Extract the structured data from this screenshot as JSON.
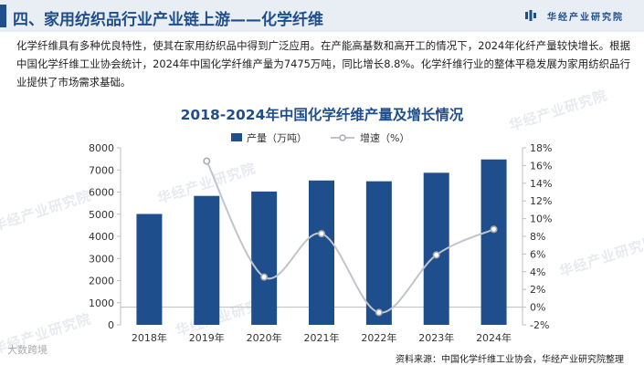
{
  "header": {
    "title": "四、家用纺织品行业产业链上游——化学纤维",
    "brand": "华经产业研究院"
  },
  "paragraph": "化学纤维具有多种优良特性，使其在家用纺织品中得到广泛应用。在产能高基数和高开工的情况下，2024年化纤产量较快增长。根据中国化学纤维工业协会统计，2024年中国化学纤维产量为7475万吨，同比增长8.8%。化学纤维行业的整体平稳发展为家用纺织品行业提供了市场需求基础。",
  "watermark_text": "华经产业研究院",
  "corner_logo": "大数跨境",
  "source": "资料来源：中国化学纤维工业协会，华经产业研究院整理",
  "colors": {
    "bar": "#1f4e8c",
    "line": "#c0c4cc",
    "title": "#1f4e8c"
  },
  "chart_data": {
    "type": "bar+line",
    "title": "2018-2024年中国化学纤维产量及增长情况",
    "categories": [
      "2018年",
      "2019年",
      "2020年",
      "2021年",
      "2022年",
      "2023年",
      "2024年"
    ],
    "series": [
      {
        "name": "产量（万吨）",
        "type": "bar",
        "axis": "left",
        "values": [
          5011,
          5827,
          6025,
          6524,
          6488,
          6872,
          7475
        ]
      },
      {
        "name": "增速（%）",
        "type": "line",
        "axis": "right",
        "values": [
          null,
          16.5,
          3.4,
          8.3,
          -0.6,
          5.9,
          8.8
        ]
      }
    ],
    "y_left": {
      "min": 0,
      "max": 8000,
      "ticks": [
        "0",
        "1000",
        "2000",
        "3000",
        "4000",
        "5000",
        "6000",
        "7000",
        "8000"
      ]
    },
    "y_right": {
      "min": -2,
      "max": 18,
      "ticks": [
        "-2%",
        "0%",
        "2%",
        "4%",
        "6%",
        "8%",
        "10%",
        "12%",
        "14%",
        "16%",
        "18%"
      ]
    },
    "legend_position": "top-center",
    "grid": false
  }
}
